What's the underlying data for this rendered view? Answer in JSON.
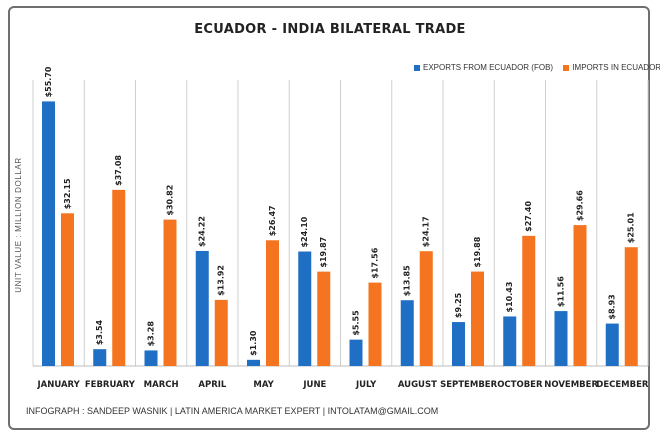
{
  "chart_data": {
    "type": "bar",
    "title": "ECUADOR - INDIA BILATERAL TRADE",
    "ylabel": "UNIT VALUE : MILLION DOLLAR",
    "xlabel": "",
    "ylim": [
      0,
      56
    ],
    "grid": false,
    "legend_position": "top-right",
    "categories": [
      "JANUARY",
      "FEBRUARY",
      "MARCH",
      "APRIL",
      "MAY",
      "JUNE",
      "JULY",
      "AUGUST",
      "SEPTEMBER",
      "OCTOBER",
      "NOVEMBER",
      "DECEMBER"
    ],
    "series": [
      {
        "name": "EXPORTS FROM ECUADOR (FOB)",
        "color": "#1f6fc5",
        "values": [
          55.7,
          3.54,
          3.28,
          24.22,
          1.3,
          24.1,
          5.55,
          13.85,
          9.25,
          10.43,
          11.56,
          8.93
        ],
        "labels": [
          "$55.70",
          "$3.54",
          "$3.28",
          "$24.22",
          "$1.30",
          "$24.10",
          "$5.55",
          "$13.85",
          "$9.25",
          "$10.43",
          "$11.56",
          "$8.93"
        ]
      },
      {
        "name": "IMPORTS IN ECUADOR (CIF)",
        "color": "#f5741f",
        "values": [
          32.15,
          37.08,
          30.82,
          13.92,
          26.47,
          19.87,
          17.56,
          24.17,
          19.88,
          27.4,
          29.66,
          25.01
        ],
        "labels": [
          "$32.15",
          "$37.08",
          "$30.82",
          "$13.92",
          "$26.47",
          "$19.87",
          "$17.56",
          "$24.17",
          "$19.88",
          "$27.40",
          "$29.66",
          "$25.01"
        ]
      }
    ]
  },
  "footer": "INFOGRAPH : SANDEEP WASNIK | LATIN AMERICA MARKET EXPERT | INTOLATAM@GMAIL.COM"
}
